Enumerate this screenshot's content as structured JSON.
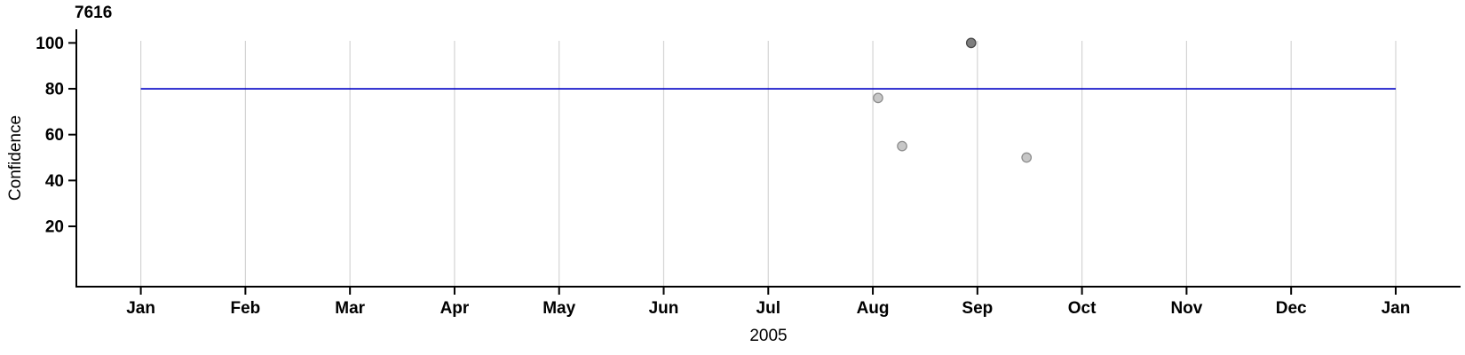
{
  "chart_data": {
    "type": "scatter",
    "panel_label": "7616",
    "xlabel": "2005",
    "ylabel": "Confidence",
    "x_axis": {
      "tick_labels": [
        "Jan",
        "Feb",
        "Mar",
        "Apr",
        "May",
        "Jun",
        "Jul",
        "Aug",
        "Sep",
        "Oct",
        "Nov",
        "Dec",
        "Jan"
      ],
      "unit": "months (0 = Jan 2005, 12 = Jan 2006)",
      "range_months": [
        0,
        12
      ]
    },
    "y_axis": {
      "tick_labels": [
        "20",
        "40",
        "60",
        "80",
        "100"
      ],
      "tick_values": [
        20,
        40,
        60,
        80,
        100
      ],
      "range": [
        0,
        105
      ]
    },
    "reference_line": {
      "value": 80,
      "span_months": [
        0,
        12
      ]
    },
    "points": [
      {
        "month": 7.05,
        "value": 76,
        "shade": "light"
      },
      {
        "month": 7.28,
        "value": 55,
        "shade": "light"
      },
      {
        "month": 7.94,
        "value": 100,
        "shade": "dark"
      },
      {
        "month": 8.47,
        "value": 50,
        "shade": "light"
      }
    ],
    "legend": "none",
    "grid": "vertical monthly gridlines only",
    "colors": {
      "axis": "#000000",
      "grid": "#d4d4d4",
      "reference_line": "#0000c6",
      "point_light_fill": "#c7c7c7",
      "point_light_stroke": "#8e8e8e",
      "point_dark_fill": "#7e7e7e",
      "point_dark_stroke": "#474747",
      "text": "#000000",
      "background": "#ffffff"
    }
  }
}
